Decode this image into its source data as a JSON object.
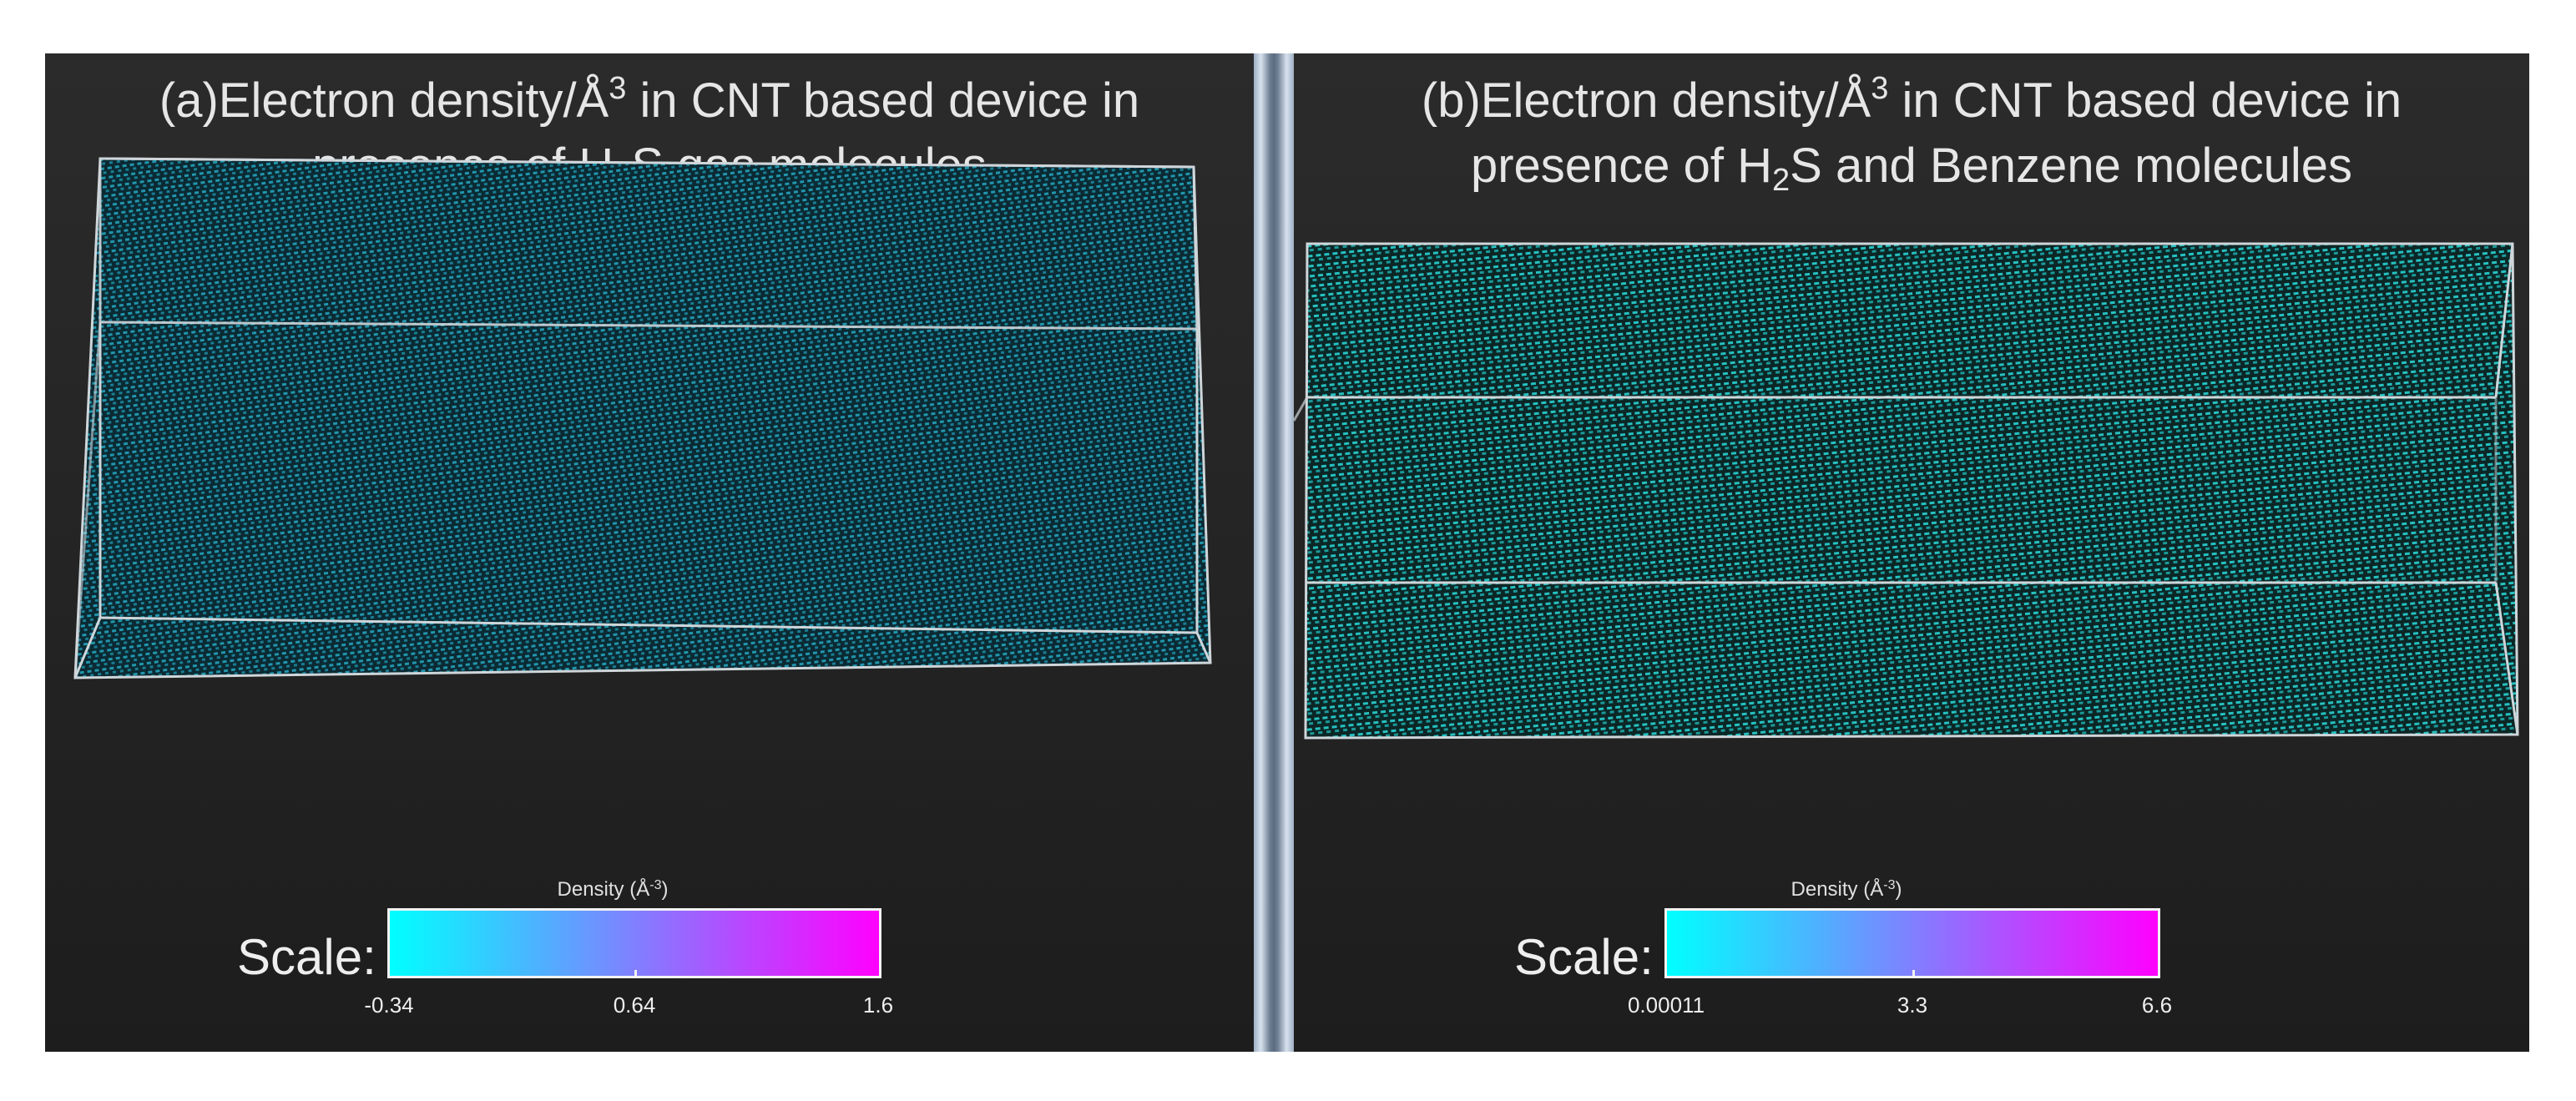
{
  "panel_a": {
    "title_line1_prefix": "(a)Electron density/Å",
    "title_line1_sup": "3",
    "title_line1_suffix": " in CNT based device in",
    "title_line2_prefix": "presence of H",
    "title_line2_sub": "2",
    "title_line2_suffix": "S gas molecules",
    "scale_title_prefix": "Density (Å",
    "scale_title_sup": "-3",
    "scale_title_suffix": ")",
    "scale_label": "Scale:",
    "colorbar_min": "-0.34",
    "colorbar_mid": "0.64",
    "colorbar_max": "1.6",
    "density_color": "#1e8fa6",
    "gradient": [
      "#00ffff",
      "#8080ff",
      "#ff00ff"
    ]
  },
  "panel_b": {
    "title_line1_prefix": "(b)Electron density/Å",
    "title_line1_sup": "3",
    "title_line1_suffix": " in CNT based device in",
    "title_line2_prefix": "presence of H",
    "title_line2_sub": "2",
    "title_line2_suffix": "S and Benzene molecules",
    "scale_title_prefix": "Density (Å",
    "scale_title_sup": "-3",
    "scale_title_suffix": ")",
    "scale_label": "Scale:",
    "colorbar_min": "0.00011",
    "colorbar_mid": "3.3",
    "colorbar_max": "6.6",
    "density_color": "#1fb3b3",
    "gradient": [
      "#00ffff",
      "#8080ff",
      "#ff00ff"
    ]
  }
}
